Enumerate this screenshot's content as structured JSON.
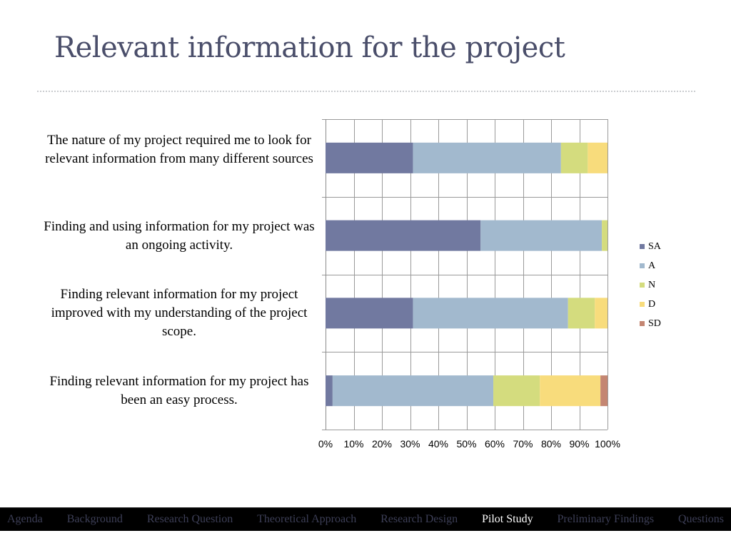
{
  "slide": {
    "title": "Relevant information for the project"
  },
  "chart_data": {
    "type": "bar",
    "orientation": "horizontal",
    "stacked": "percent",
    "categories": [
      "The nature of my project required me to look for relevant information from many different sources",
      "Finding and using information for my project was an ongoing activity.",
      "Finding relevant information for my project improved with my understanding of the project scope.",
      "Finding relevant information for my project has been an easy process."
    ],
    "series": [
      {
        "name": "SA",
        "color": "#7179a0",
        "values": [
          31,
          55,
          31,
          2.5
        ]
      },
      {
        "name": "A",
        "color": "#a2b9ce",
        "values": [
          52.5,
          43,
          55,
          57
        ]
      },
      {
        "name": "N",
        "color": "#d4dc7e",
        "values": [
          9.5,
          2,
          9.5,
          16.5
        ]
      },
      {
        "name": "D",
        "color": "#f8dc7c",
        "values": [
          7,
          0,
          4.5,
          21.5
        ]
      },
      {
        "name": "SD",
        "color": "#c48672",
        "values": [
          0,
          0,
          0,
          2.5
        ]
      }
    ],
    "xlim": [
      0,
      100
    ],
    "xticks": [
      "0%",
      "10%",
      "20%",
      "30%",
      "40%",
      "50%",
      "60%",
      "70%",
      "80%",
      "90%",
      "100%"
    ],
    "grid": true,
    "legend_position": "right"
  },
  "nav": {
    "items": [
      {
        "label": "Agenda",
        "active": false
      },
      {
        "label": "Background",
        "active": false
      },
      {
        "label": "Research  Question",
        "active": false
      },
      {
        "label": "Theoretical  Approach",
        "active": false
      },
      {
        "label": "Research Design",
        "active": false
      },
      {
        "label": "Pilot Study",
        "active": true
      },
      {
        "label": "Preliminary Findings",
        "active": false
      },
      {
        "label": "Questions",
        "active": false
      }
    ]
  }
}
